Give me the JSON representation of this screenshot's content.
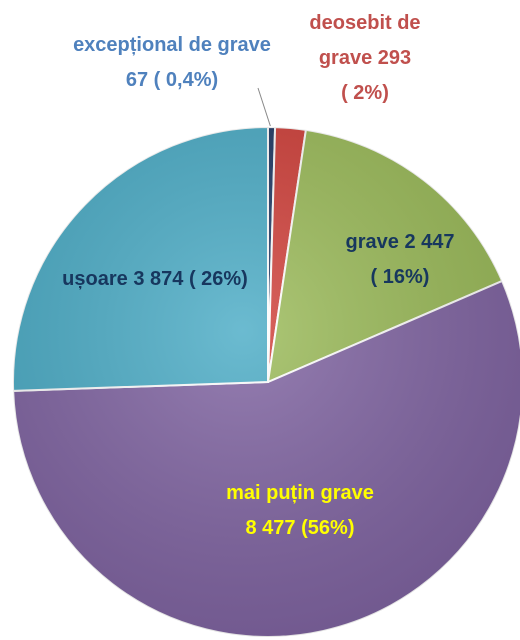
{
  "chart_data": {
    "type": "pie",
    "categories": [
      "excepțional de grave",
      "deosebit de grave",
      "grave",
      "mai puțin grave",
      "ușoare"
    ],
    "values": [
      67,
      293,
      2447,
      8477,
      3874
    ],
    "value_labels": [
      "67",
      "293",
      "2 447",
      "8 477",
      "3 874"
    ],
    "percent_labels": [
      "( 0,4%)",
      "( 2%)",
      "( 16%)",
      "(56%)",
      "( 26%)"
    ],
    "colors": [
      "#1f3864",
      "#d0403a",
      "#9bbb59",
      "#8064a2",
      "#4bacc6"
    ],
    "label_colors": [
      "#4f81bd",
      "#c0504d",
      "#17375e",
      "#ffff00",
      "#17375e"
    ]
  }
}
